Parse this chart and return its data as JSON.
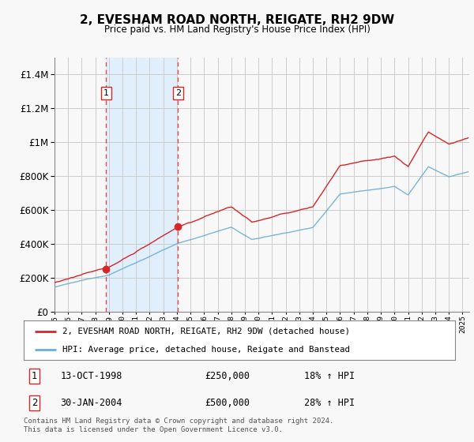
{
  "title": "2, EVESHAM ROAD NORTH, REIGATE, RH2 9DW",
  "subtitle": "Price paid vs. HM Land Registry's House Price Index (HPI)",
  "hpi_label": "HPI: Average price, detached house, Reigate and Banstead",
  "property_label": "2, EVESHAM ROAD NORTH, REIGATE, RH2 9DW (detached house)",
  "footnote": "Contains HM Land Registry data © Crown copyright and database right 2024.\nThis data is licensed under the Open Government Licence v3.0.",
  "sale1_year": 1998.79,
  "sale1_price": 250000,
  "sale2_year": 2004.08,
  "sale2_price": 500000,
  "sale1_date": "13-OCT-1998",
  "sale2_date": "30-JAN-2004",
  "sale1_pct": "18% ↑ HPI",
  "sale2_pct": "28% ↑ HPI",
  "hpi_color": "#6baed6",
  "property_color": "#d62728",
  "sale_dot_color": "#d62728",
  "vline_color": "#d62728",
  "shade_color": "#ddeeff",
  "background_color": "#f8f8f8",
  "grid_color": "#cccccc",
  "ylim": [
    0,
    1500000
  ],
  "xlim_start": 1995.0,
  "xlim_end": 2025.5
}
